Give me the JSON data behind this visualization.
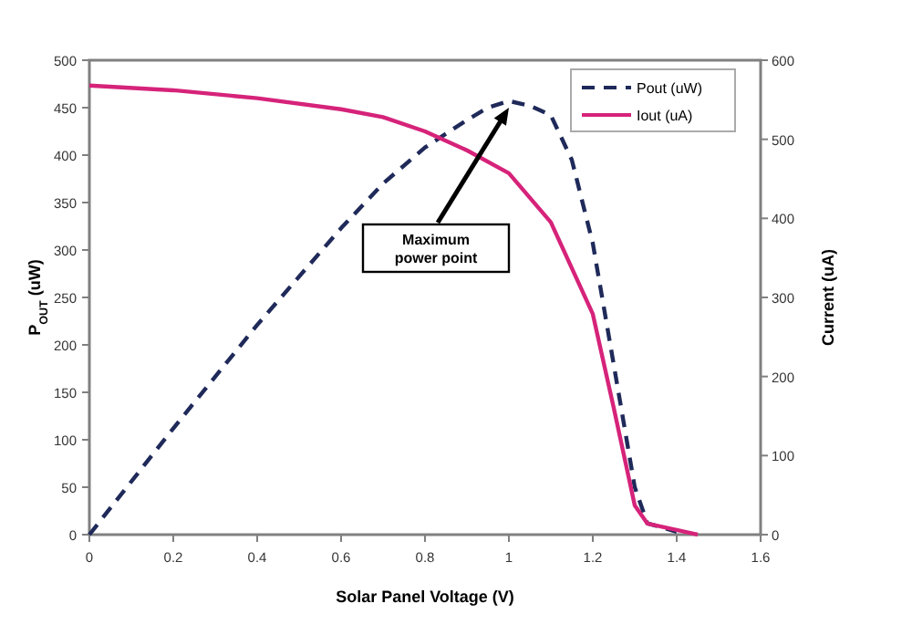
{
  "chart_data": {
    "type": "line",
    "xlabel": "Solar Panel Voltage (V)",
    "ylabel": "P$_{OUT}$ (uW)",
    "y2label": "Current (uA)",
    "xlim": [
      0,
      1.6
    ],
    "xticks": [
      0,
      0.2,
      0.4,
      0.6,
      0.8,
      1,
      1.2,
      1.4,
      1.6
    ],
    "ylim": [
      0,
      500
    ],
    "yticks": [
      0,
      50,
      100,
      150,
      200,
      250,
      300,
      350,
      400,
      450,
      500
    ],
    "y2lim": [
      0,
      600
    ],
    "y2ticks": [
      0,
      100,
      200,
      300,
      400,
      500,
      600
    ],
    "grid": false,
    "legend": "top right",
    "marker": "none",
    "series": [
      {
        "name": "Pout (uW)",
        "color": "#1f2a5a",
        "line_style": "dashed",
        "x": [
          0,
          0.2,
          0.4,
          0.6,
          0.7,
          0.8,
          0.9,
          0.95,
          1,
          1.05,
          1.1,
          1.15,
          1.2,
          1.25,
          1.3,
          1.33,
          1.4
        ],
        "values": [
          0,
          112,
          221,
          323,
          370,
          408,
          437,
          450,
          457,
          452,
          442,
          395,
          307,
          179,
          50,
          12,
          3
        ]
      },
      {
        "name": "Iout (uA)",
        "color": "#d6237a",
        "line_style": "solid",
        "axis": "y2",
        "x": [
          0,
          0.2,
          0.4,
          0.6,
          0.7,
          0.8,
          0.9,
          1,
          1.1,
          1.2,
          1.25,
          1.3,
          1.33,
          1.4,
          1.45
        ],
        "values": [
          568,
          562,
          552,
          538,
          528,
          510,
          486,
          457,
          395,
          279,
          160,
          37,
          14,
          6,
          0
        ]
      }
    ],
    "annotations": [
      "Maximum\npower point"
    ]
  }
}
